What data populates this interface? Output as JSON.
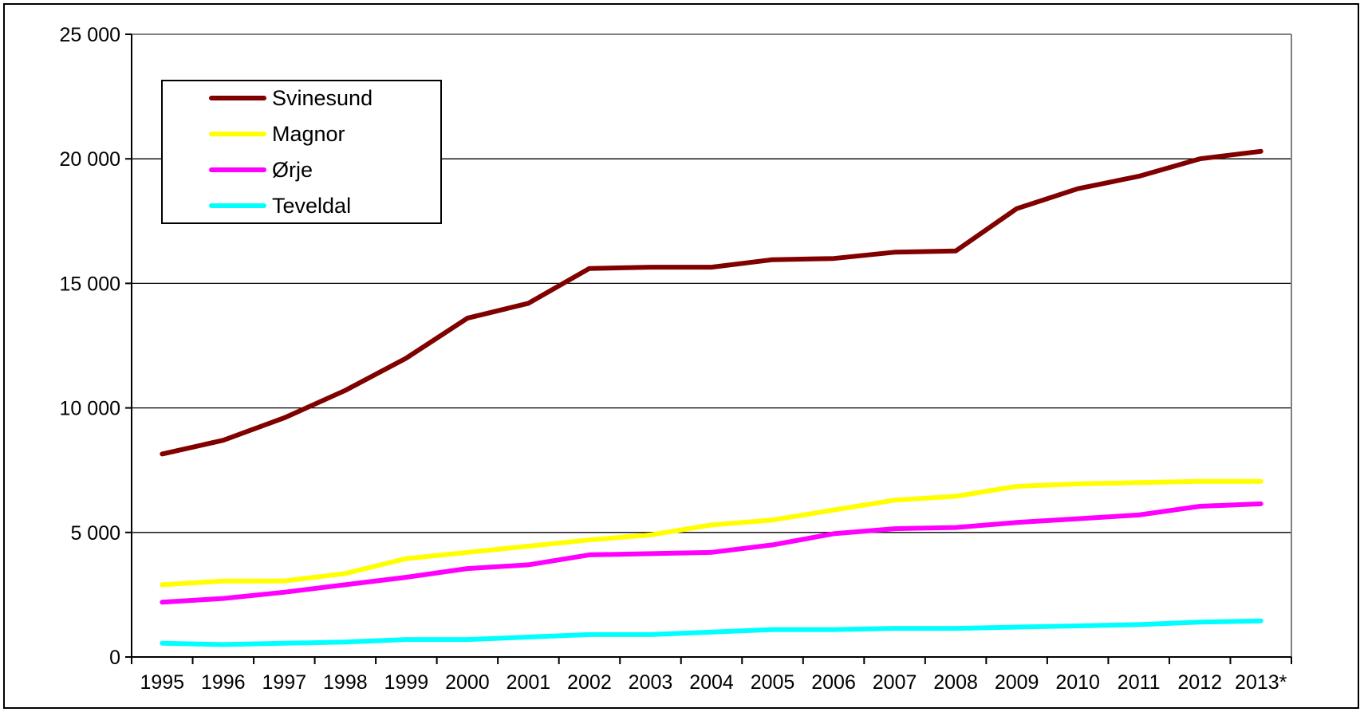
{
  "chart_data": {
    "type": "line",
    "title": "",
    "xlabel": "",
    "ylabel": "",
    "categories": [
      "1995",
      "1996",
      "1997",
      "1998",
      "1999",
      "2000",
      "2001",
      "2002",
      "2003",
      "2004",
      "2005",
      "2006",
      "2007",
      "2008",
      "2009",
      "2010",
      "2011",
      "2012",
      "2013*"
    ],
    "ylim": [
      0,
      25000
    ],
    "yticks": [
      0,
      5000,
      10000,
      15000,
      20000,
      25000
    ],
    "ytick_labels": [
      "0",
      "5 000",
      "10 000",
      "15 000",
      "20 000",
      "25 000"
    ],
    "grid": "horizontal",
    "legend": "top-left",
    "series": [
      {
        "name": "Svinesund",
        "color": "#800000",
        "values": [
          8150,
          8700,
          9600,
          10700,
          12000,
          13600,
          14200,
          15600,
          15650,
          15650,
          15950,
          16000,
          16250,
          16300,
          18000,
          18800,
          19300,
          20000,
          20300
        ]
      },
      {
        "name": "Magnor",
        "color": "#ffff00",
        "values": [
          2900,
          3050,
          3050,
          3350,
          3950,
          4200,
          4450,
          4700,
          4900,
          5300,
          5500,
          5900,
          6300,
          6450,
          6850,
          6950,
          7000,
          7050,
          7050
        ]
      },
      {
        "name": "Ørje",
        "color": "#ff00ff",
        "values": [
          2200,
          2350,
          2600,
          2900,
          3200,
          3550,
          3700,
          4100,
          4150,
          4200,
          4500,
          4950,
          5150,
          5200,
          5400,
          5550,
          5700,
          6050,
          6150
        ]
      },
      {
        "name": "Teveldal",
        "color": "#00ffff",
        "values": [
          550,
          500,
          550,
          600,
          700,
          700,
          800,
          900,
          900,
          1000,
          1100,
          1100,
          1150,
          1150,
          1200,
          1250,
          1300,
          1400,
          1450
        ]
      }
    ]
  }
}
